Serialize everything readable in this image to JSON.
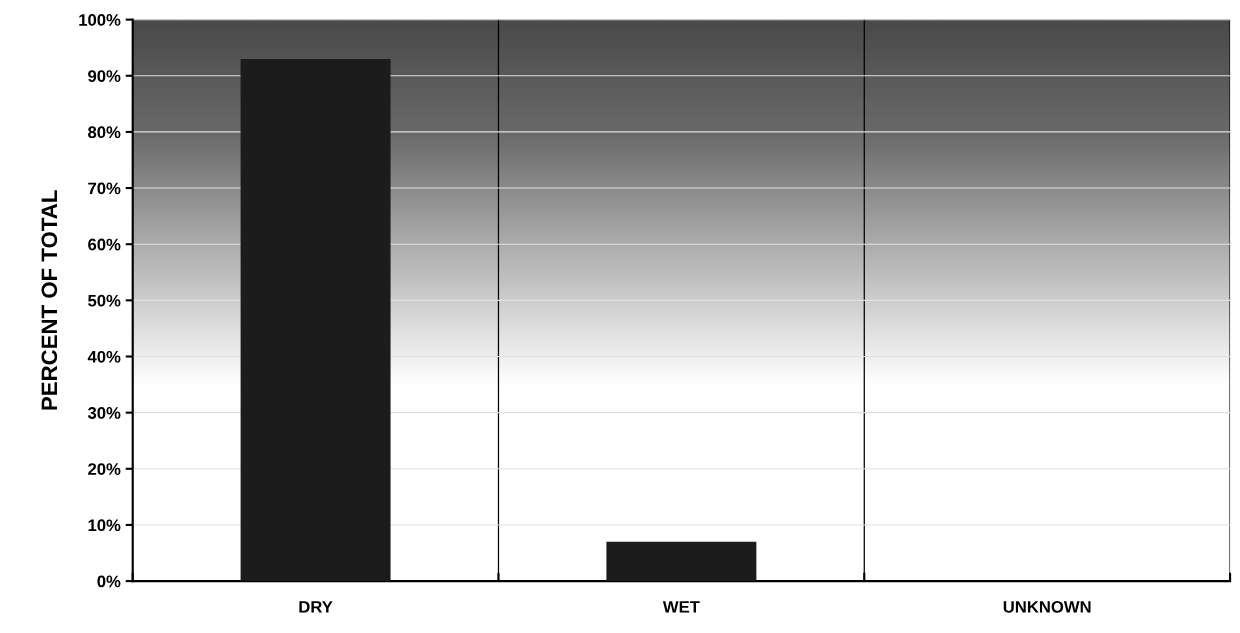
{
  "chart_data": {
    "type": "bar",
    "ylabel": "PERCENT OF TOTAL",
    "categories": [
      "DRY",
      "WET",
      "UNKNOWN"
    ],
    "values": [
      93,
      7,
      0
    ],
    "color": "#1c1c1c",
    "ylim": [
      0,
      100
    ],
    "yticks": [
      {
        "value": 0,
        "label": "0%"
      },
      {
        "value": 10,
        "label": "10%"
      },
      {
        "value": 20,
        "label": "20%"
      },
      {
        "value": 30,
        "label": "30%"
      },
      {
        "value": 40,
        "label": "40%"
      },
      {
        "value": 50,
        "label": "50%"
      },
      {
        "value": 60,
        "label": "60%"
      },
      {
        "value": 70,
        "label": "70%"
      },
      {
        "value": 80,
        "label": "80%"
      },
      {
        "value": 90,
        "label": "90%"
      },
      {
        "value": 100,
        "label": "100%"
      }
    ],
    "grid": true,
    "legend": false
  }
}
